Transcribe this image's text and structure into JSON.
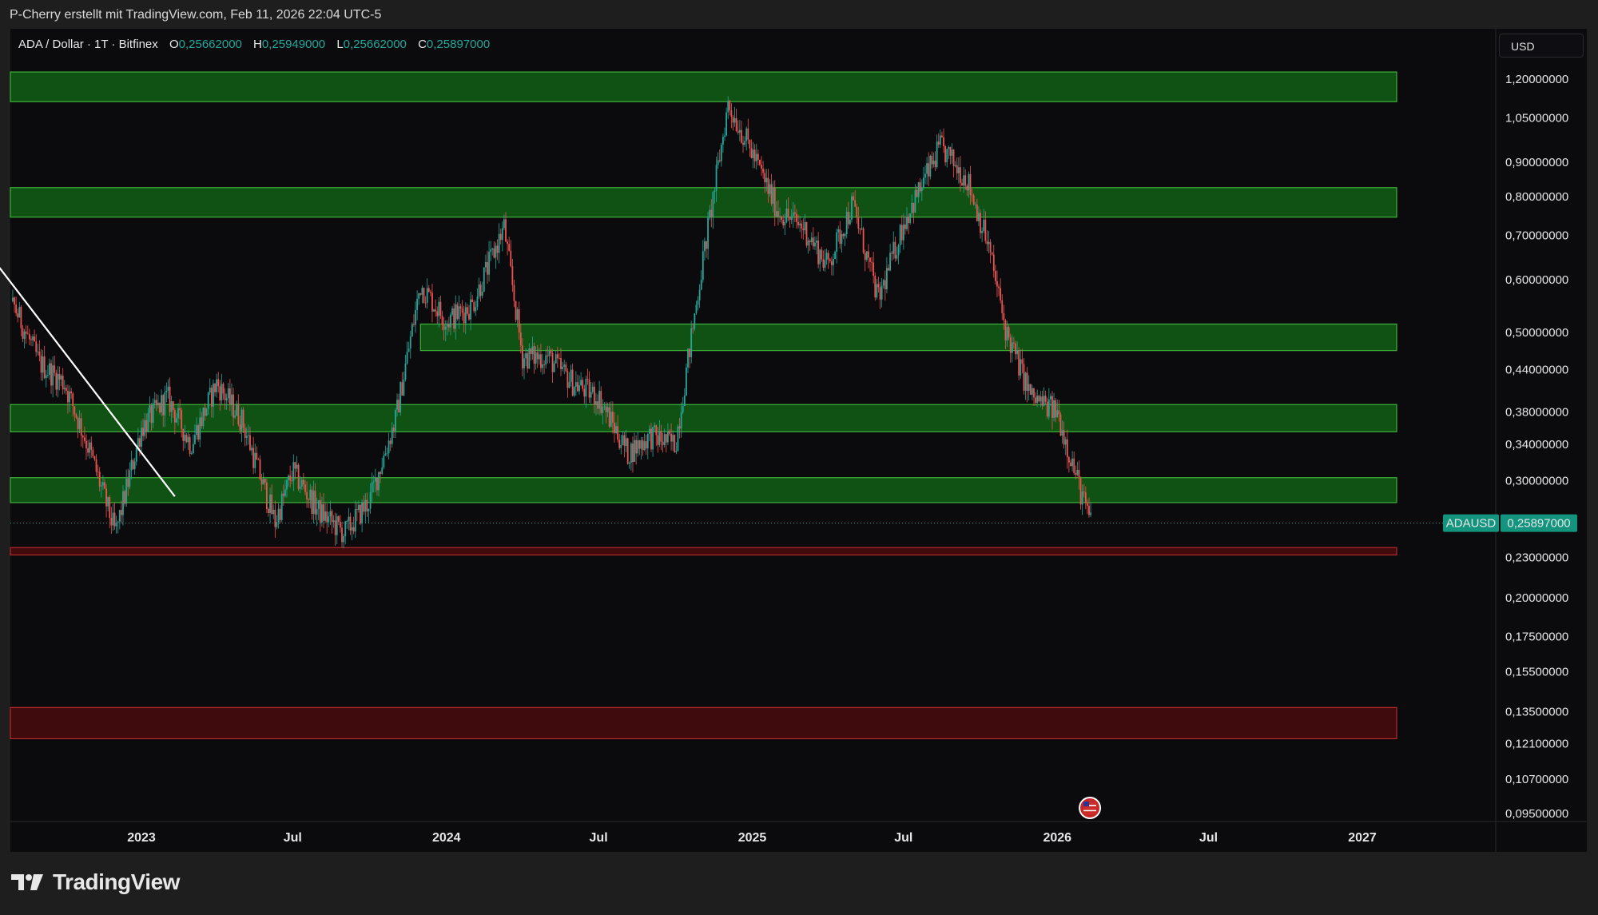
{
  "caption": "P-Cherry erstellt mit TradingView.com, Feb 11, 2026 22:04 UTC-5",
  "legend": {
    "symbol": "ADA / Dollar · 1T · Bitfinex",
    "o_label": "O",
    "o_value": "0,25662000",
    "h_label": "H",
    "h_value": "0,25949000",
    "l_label": "L",
    "l_value": "0,25662000",
    "c_label": "C",
    "c_value": "0,25897000"
  },
  "currency": "USD",
  "brand": "TradingView",
  "colors": {
    "background": "#0b0b0e",
    "up": "#26a69a",
    "down": "#ef5350",
    "zone_green": "#0f5a14",
    "zone_red": "#4a0c0c",
    "trendline": "#ffffff"
  },
  "chart_data": {
    "type": "line",
    "log_scale": true,
    "x_ticks": [
      {
        "label": "2023",
        "date": "2023-01-01"
      },
      {
        "label": "Jul",
        "date": "2023-07-01"
      },
      {
        "label": "2024",
        "date": "2024-01-01"
      },
      {
        "label": "Jul",
        "date": "2024-07-01"
      },
      {
        "label": "2025",
        "date": "2025-01-01"
      },
      {
        "label": "Jul",
        "date": "2025-07-01"
      },
      {
        "label": "2026",
        "date": "2026-01-01"
      },
      {
        "label": "Jul",
        "date": "2026-07-01"
      },
      {
        "label": "2027",
        "date": "2027-01-01"
      }
    ],
    "y_ticks": [
      {
        "label": "1,20000000",
        "value": 1.2
      },
      {
        "label": "1,05000000",
        "value": 1.05
      },
      {
        "label": "0,90000000",
        "value": 0.9
      },
      {
        "label": "0,80000000",
        "value": 0.8
      },
      {
        "label": "0,70000000",
        "value": 0.7
      },
      {
        "label": "0,60000000",
        "value": 0.6
      },
      {
        "label": "0,50000000",
        "value": 0.5
      },
      {
        "label": "0,44000000",
        "value": 0.44
      },
      {
        "label": "0,38000000",
        "value": 0.38
      },
      {
        "label": "0,34000000",
        "value": 0.34
      },
      {
        "label": "0,30000000",
        "value": 0.3
      },
      {
        "label": "0,23000000",
        "value": 0.23
      },
      {
        "label": "0,20000000",
        "value": 0.2
      },
      {
        "label": "0,17500000",
        "value": 0.175
      },
      {
        "label": "0,15500000",
        "value": 0.155
      },
      {
        "label": "0,13500000",
        "value": 0.135
      },
      {
        "label": "0,12100000",
        "value": 0.121
      },
      {
        "label": "0,10700000",
        "value": 0.107
      },
      {
        "label": "0,09500000",
        "value": 0.095
      }
    ],
    "last_price": {
      "symbol": "ADAUSD",
      "label": "0,25897000",
      "value": 0.25897
    },
    "price_series": {
      "x": [
        "2022-07-01",
        "2022-08-01",
        "2022-09-01",
        "2022-10-01",
        "2022-11-01",
        "2022-12-01",
        "2023-01-01",
        "2023-02-01",
        "2023-03-01",
        "2023-04-01",
        "2023-05-01",
        "2023-06-10",
        "2023-07-01",
        "2023-08-01",
        "2023-09-01",
        "2023-10-01",
        "2023-11-01",
        "2023-12-01",
        "2024-01-01",
        "2024-02-01",
        "2024-03-10",
        "2024-04-01",
        "2024-05-01",
        "2024-06-01",
        "2024-07-01",
        "2024-08-05",
        "2024-09-01",
        "2024-10-01",
        "2024-11-01",
        "2024-12-03",
        "2025-01-01",
        "2025-02-01",
        "2025-03-03",
        "2025-04-01",
        "2025-05-01",
        "2025-06-01",
        "2025-07-01",
        "2025-08-14",
        "2025-09-15",
        "2025-10-10",
        "2025-11-01",
        "2025-12-01",
        "2026-01-01",
        "2026-02-05",
        "2026-02-11"
      ],
      "close": [
        0.47,
        0.55,
        0.45,
        0.42,
        0.33,
        0.25,
        0.36,
        0.4,
        0.34,
        0.42,
        0.37,
        0.26,
        0.31,
        0.27,
        0.25,
        0.28,
        0.37,
        0.59,
        0.52,
        0.55,
        0.72,
        0.46,
        0.46,
        0.42,
        0.4,
        0.33,
        0.35,
        0.34,
        0.62,
        1.1,
        0.93,
        0.76,
        0.72,
        0.63,
        0.78,
        0.56,
        0.73,
        0.95,
        0.85,
        0.68,
        0.5,
        0.4,
        0.38,
        0.27,
        0.259
      ]
    },
    "zones": [
      {
        "kind": "resistance",
        "start": "2022-07-01",
        "end": "2026-12-01",
        "low": 1.11,
        "high": 1.23
      },
      {
        "kind": "resistance",
        "start": "2022-07-01",
        "end": "2026-12-01",
        "low": 0.745,
        "high": 0.825
      },
      {
        "kind": "resistance",
        "start": "2023-12-01",
        "end": "2026-12-01",
        "low": 0.47,
        "high": 0.515
      },
      {
        "kind": "resistance",
        "start": "2022-07-01",
        "end": "2026-12-01",
        "low": 0.355,
        "high": 0.39
      },
      {
        "kind": "resistance",
        "start": "2022-07-01",
        "end": "2026-12-01",
        "low": 0.278,
        "high": 0.303
      },
      {
        "kind": "support",
        "start": "2022-07-01",
        "end": "2026-12-01",
        "low": 0.232,
        "high": 0.238
      },
      {
        "kind": "support",
        "start": "2022-07-01",
        "end": "2026-12-01",
        "low": 0.123,
        "high": 0.137
      }
    ],
    "trendline": {
      "start": {
        "date": "2022-07-01",
        "value": 0.66
      },
      "end": {
        "date": "2023-02-10",
        "value": 0.284
      }
    }
  }
}
